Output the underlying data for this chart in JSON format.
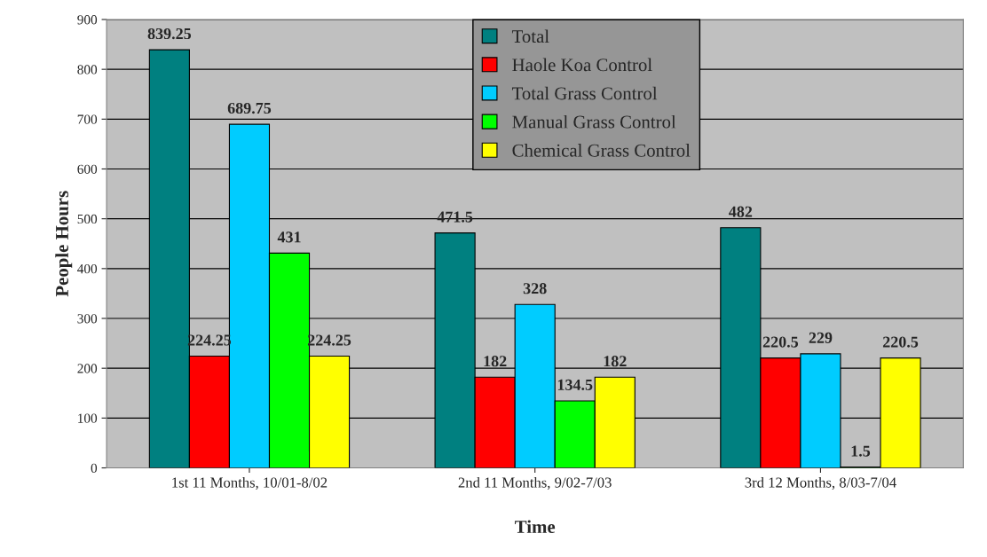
{
  "chart_data": {
    "type": "bar",
    "xlabel": "Time",
    "ylabel": "People Hours",
    "categories": [
      "1st 11 Months, 10/01-8/02",
      "2nd 11 Months, 9/02-7/03",
      "3rd 12 Months, 8/03-7/04"
    ],
    "series": [
      {
        "name": "Total",
        "color": "#008080",
        "values": [
          839.25,
          471.5,
          482
        ]
      },
      {
        "name": "Haole Koa Control",
        "color": "#ff0000",
        "values": [
          224.25,
          182,
          220.5
        ]
      },
      {
        "name": "Total Grass Control",
        "color": "#00ccff",
        "values": [
          689.75,
          328,
          229
        ]
      },
      {
        "name": "Manual Grass Control",
        "color": "#00ff00",
        "values": [
          431,
          134.5,
          1.5
        ]
      },
      {
        "name": "Chemical Grass Control",
        "color": "#ffff00",
        "values": [
          224.25,
          182,
          220.5
        ]
      }
    ],
    "ylim": [
      0,
      900
    ],
    "yticks": [
      0,
      100,
      200,
      300,
      400,
      500,
      600,
      700,
      800,
      900
    ],
    "grid": "y",
    "legend": "top",
    "data_labels": true
  }
}
